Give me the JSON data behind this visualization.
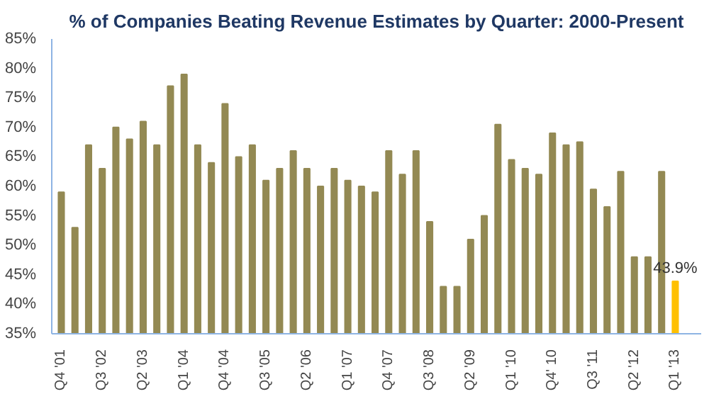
{
  "chart_data": {
    "type": "bar",
    "title": "% of Companies Beating Revenue Estimates by Quarter: 2000-Present",
    "categories": [
      "Q4 '01",
      null,
      null,
      "Q3 '02",
      null,
      null,
      "Q2 '03",
      null,
      null,
      "Q1 '04",
      null,
      null,
      "Q4 '04",
      null,
      null,
      "Q3 '05",
      null,
      null,
      "Q2 '06",
      null,
      null,
      "Q1 '07",
      null,
      null,
      "Q4 '07",
      null,
      null,
      "Q3 '08",
      null,
      null,
      "Q2 '09",
      null,
      null,
      "Q1 '10",
      null,
      null,
      "Q4' 10",
      null,
      null,
      "Q3 '11",
      null,
      null,
      "Q2 '12",
      null,
      null,
      "Q1 '13"
    ],
    "values": [
      59,
      53,
      67,
      63,
      70,
      68,
      71,
      67,
      77,
      79,
      67,
      64,
      74,
      65,
      67,
      61,
      63,
      66,
      63,
      60,
      63,
      61,
      60,
      59,
      66,
      62,
      66,
      54,
      43,
      43,
      51,
      55,
      70.5,
      64.5,
      63,
      62,
      69,
      67,
      67.5,
      59.5,
      56.5,
      62.5,
      48,
      48,
      62.5,
      43.9
    ],
    "colors": [
      "#938953",
      "#938953",
      "#938953",
      "#938953",
      "#938953",
      "#938953",
      "#938953",
      "#938953",
      "#938953",
      "#938953",
      "#938953",
      "#938953",
      "#938953",
      "#938953",
      "#938953",
      "#938953",
      "#938953",
      "#938953",
      "#938953",
      "#938953",
      "#938953",
      "#938953",
      "#938953",
      "#938953",
      "#938953",
      "#938953",
      "#938953",
      "#938953",
      "#938953",
      "#938953",
      "#938953",
      "#938953",
      "#938953",
      "#938953",
      "#938953",
      "#938953",
      "#938953",
      "#938953",
      "#938953",
      "#938953",
      "#938953",
      "#938953",
      "#938953",
      "#938953",
      "#938953",
      "#ffc000"
    ],
    "value_labels": [
      null,
      null,
      null,
      null,
      null,
      null,
      null,
      null,
      null,
      null,
      null,
      null,
      null,
      null,
      null,
      null,
      null,
      null,
      null,
      null,
      null,
      null,
      null,
      null,
      null,
      null,
      null,
      null,
      null,
      null,
      null,
      null,
      null,
      null,
      null,
      null,
      null,
      null,
      null,
      null,
      null,
      null,
      null,
      null,
      null,
      "43.9%"
    ],
    "ylim": [
      35,
      85
    ],
    "yticks": [
      {
        "value": 35,
        "label": "35%"
      },
      {
        "value": 40,
        "label": "40%"
      },
      {
        "value": 45,
        "label": "45%"
      },
      {
        "value": 50,
        "label": "50%"
      },
      {
        "value": 55,
        "label": "55%"
      },
      {
        "value": 60,
        "label": "60%"
      },
      {
        "value": 65,
        "label": "65%"
      },
      {
        "value": 70,
        "label": "70%"
      },
      {
        "value": 75,
        "label": "75%"
      },
      {
        "value": 80,
        "label": "80%"
      },
      {
        "value": 85,
        "label": "85%"
      }
    ],
    "grid": false
  }
}
